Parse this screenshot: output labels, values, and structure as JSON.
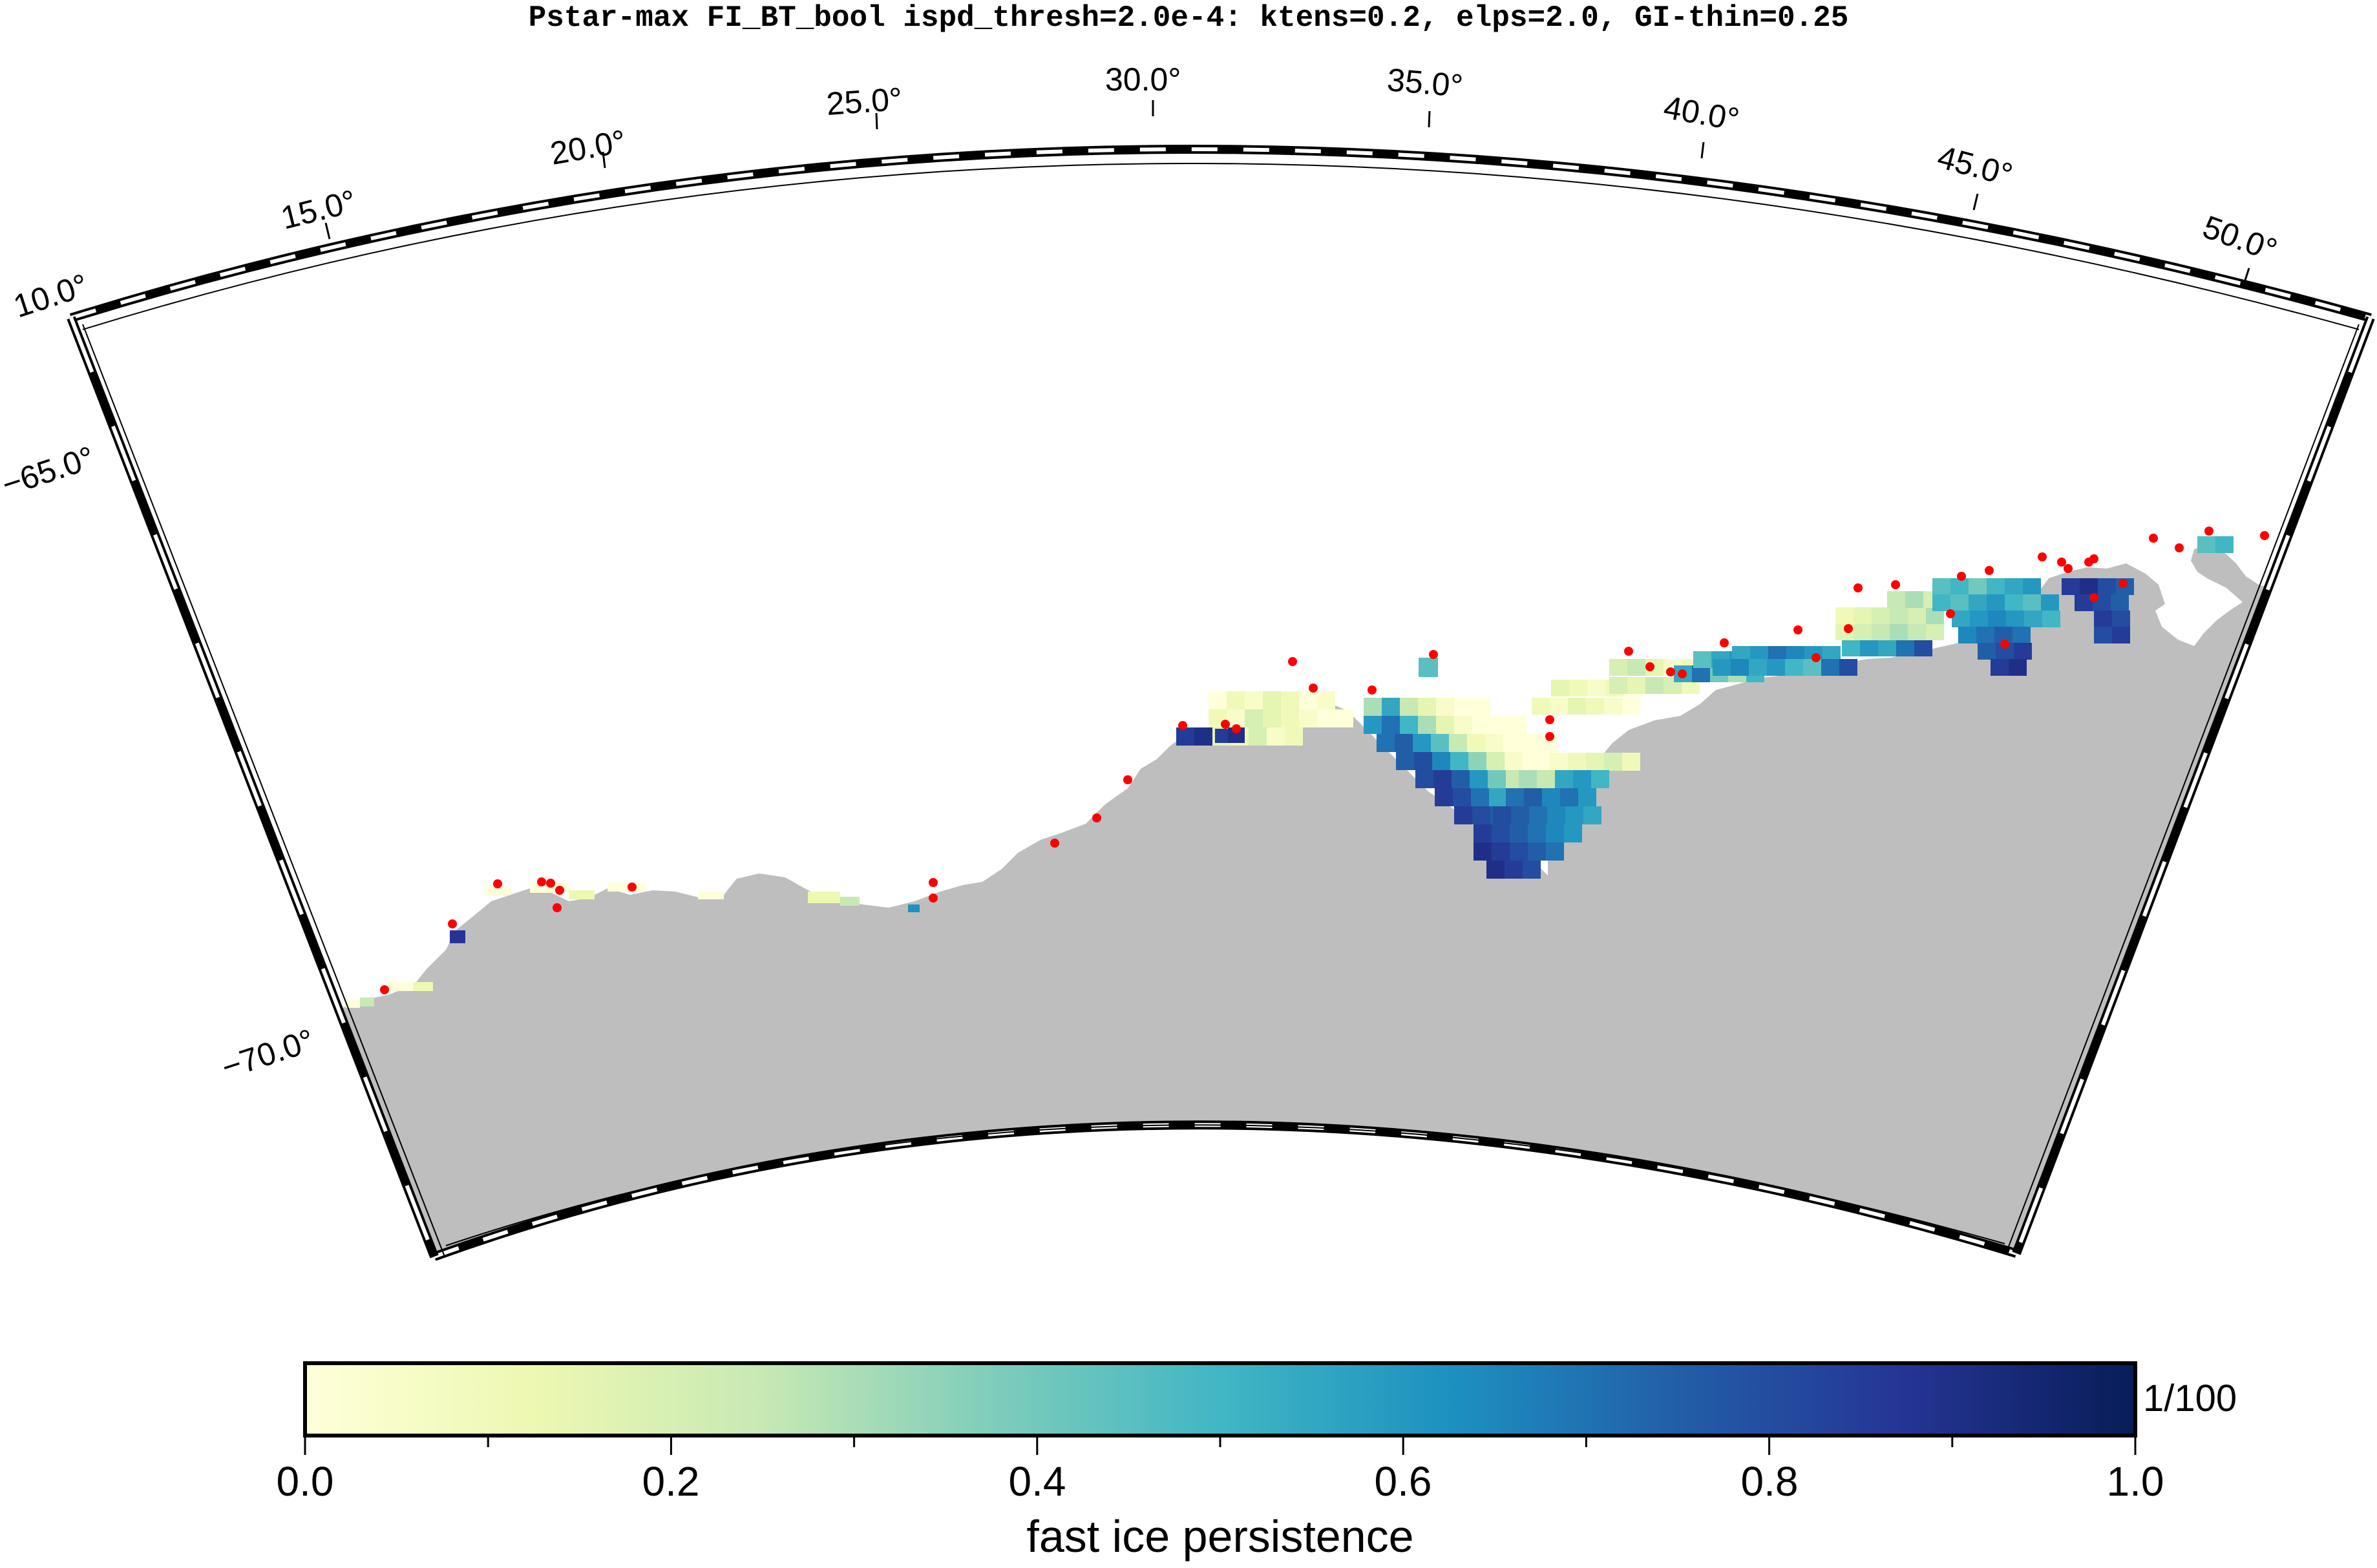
{
  "title": "Pstar-max FI_BT_bool ispd_thresh=2.0e-4: ktens=0.2, elps=2.0, GI-thin=0.25",
  "map": {
    "longitude_labels": [
      "10.0°",
      "15.0°",
      "20.0°",
      "25.0°",
      "30.0°",
      "35.0°",
      "40.0°",
      "45.0°",
      "50.0°"
    ],
    "latitude_labels": [
      "−65.0°",
      "−70.0°"
    ],
    "land_color": "#bebebe",
    "ocean_color": "#ffffff",
    "marker_color": "#ff0000"
  },
  "colorbar": {
    "label": "fast ice persistence",
    "unit_label": "1/100",
    "ticks": [
      "0.0",
      "0.2",
      "0.4",
      "0.6",
      "0.8",
      "1.0"
    ],
    "range": [
      0.0,
      1.0
    ],
    "colormap": "YlGnBu",
    "color_stops": [
      "#ffffd9",
      "#edf8b1",
      "#c7e9b4",
      "#7fcdbb",
      "#41b6c4",
      "#1d91c0",
      "#225ea8",
      "#253494",
      "#081d58"
    ]
  }
}
